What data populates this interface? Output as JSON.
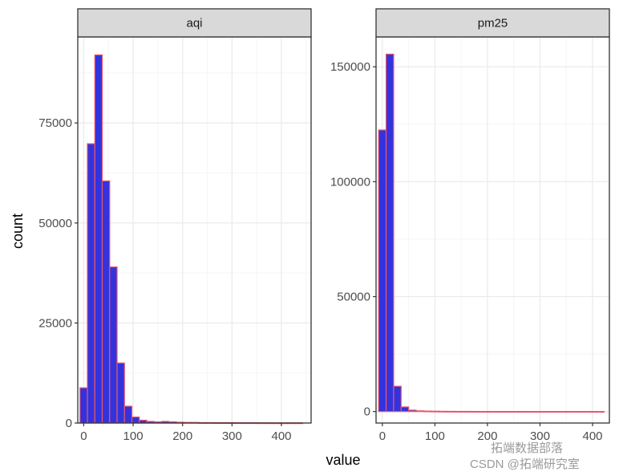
{
  "chart_data": {
    "type": "bar",
    "xlabel": "value",
    "ylabel": "count",
    "grid": true,
    "colors": {
      "fill": "#3333dd",
      "outline": "#e8556a",
      "strip": "#d9d9d9",
      "grid_major": "#ebebeb",
      "grid_minor": "#f5f5f5"
    },
    "panels": [
      {
        "strip_label": "aqi",
        "xlim": [
          -12,
          460
        ],
        "ylim": [
          0,
          96500
        ],
        "x_ticks": [
          0,
          100,
          200,
          300,
          400
        ],
        "x_tick_labels": [
          "0",
          "100",
          "200",
          "300",
          "400"
        ],
        "y_ticks": [
          0,
          25000,
          50000,
          75000
        ],
        "y_tick_labels": [
          "0",
          "25000",
          "50000",
          "75000"
        ],
        "bin_width": 15,
        "bin_centers": [
          0,
          15,
          30,
          45,
          60,
          75,
          90,
          105,
          120,
          135,
          150,
          165,
          180,
          195,
          210,
          225,
          240,
          255,
          270,
          285,
          300,
          315,
          330,
          345,
          360,
          375,
          390,
          405,
          420,
          435
        ],
        "counts": [
          8800,
          69800,
          92000,
          60500,
          39000,
          15000,
          4200,
          1500,
          700,
          400,
          300,
          400,
          300,
          200,
          150,
          150,
          100,
          100,
          80,
          80,
          80,
          60,
          60,
          60,
          50,
          50,
          40,
          40,
          40,
          40
        ]
      },
      {
        "strip_label": "pm25",
        "xlim": [
          -12,
          432
        ],
        "ylim": [
          -5000,
          163000
        ],
        "x_ticks": [
          0,
          100,
          200,
          300,
          400
        ],
        "x_tick_labels": [
          "0",
          "100",
          "200",
          "300",
          "400"
        ],
        "y_ticks": [
          0,
          50000,
          100000,
          150000
        ],
        "y_tick_labels": [
          "0",
          "50000",
          "100000",
          "150000"
        ],
        "bin_width": 14.3,
        "bin_centers": [
          0,
          14.3,
          28.6,
          42.9,
          57.2,
          71.5,
          85.8,
          100.1,
          114.4,
          128.7,
          143,
          157.3,
          171.6,
          185.9,
          200.2,
          214.5,
          228.8,
          243.1,
          257.4,
          271.7,
          286,
          300.3,
          314.6,
          328.9,
          343.2,
          357.5,
          371.8,
          386.1,
          400.4,
          414.7
        ],
        "counts": [
          122500,
          155500,
          11000,
          2000,
          600,
          300,
          200,
          150,
          100,
          80,
          60,
          50,
          40,
          30,
          30,
          20,
          20,
          20,
          20,
          20,
          10,
          10,
          10,
          10,
          10,
          10,
          10,
          10,
          10,
          10
        ]
      }
    ]
  },
  "watermark": {
    "line1": "拓端数据部落",
    "line2": "CSDN @拓端研究室"
  }
}
